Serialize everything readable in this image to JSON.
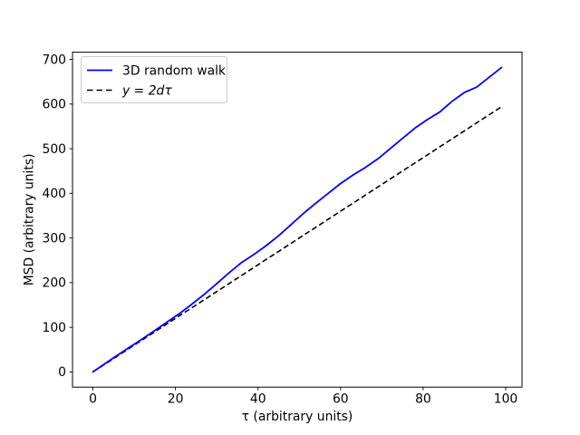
{
  "chart_data": {
    "type": "line",
    "title": "",
    "xlabel": "τ (arbitrary units)",
    "ylabel": "MSD (arbitrary units)",
    "x": [
      0,
      3,
      6,
      9,
      12,
      15,
      18,
      21,
      24,
      27,
      30,
      33,
      36,
      39,
      42,
      45,
      48,
      51,
      54,
      57,
      60,
      63,
      66,
      69,
      72,
      75,
      78,
      81,
      84,
      87,
      90,
      93,
      96,
      99
    ],
    "series": [
      {
        "name": "3D random walk",
        "color": "#0000ff",
        "style": "solid",
        "values": [
          0,
          19,
          38,
          56,
          74,
          93,
          112,
          131,
          152,
          174,
          198,
          222,
          245,
          263,
          283,
          305,
          330,
          355,
          378,
          400,
          422,
          441,
          458,
          477,
          500,
          523,
          546,
          565,
          582,
          606,
          626,
          638,
          660,
          682
        ]
      },
      {
        "name": "y = 2dτ",
        "color": "#000000",
        "style": "dashed",
        "values": [
          0,
          18,
          36,
          54,
          72,
          90,
          108,
          126,
          144,
          162,
          180,
          198,
          216,
          234,
          252,
          270,
          288,
          306,
          324,
          342,
          360,
          378,
          396,
          414,
          432,
          450,
          468,
          486,
          504,
          522,
          540,
          558,
          576,
          594
        ]
      }
    ],
    "x_ticks": [
      0,
      20,
      40,
      60,
      80,
      100
    ],
    "y_ticks": [
      0,
      100,
      200,
      300,
      400,
      500,
      600,
      700
    ],
    "xlim": [
      -4.95,
      103.95
    ],
    "ylim": [
      -34.1,
      716.1
    ],
    "grid": false,
    "legend_position": "upper left"
  },
  "colors": {
    "background": "#ffffff",
    "axis": "#000000",
    "text": "#000000",
    "legend_border": "#cccccc",
    "series_walk": "#0000ff",
    "series_theory": "#000000"
  }
}
